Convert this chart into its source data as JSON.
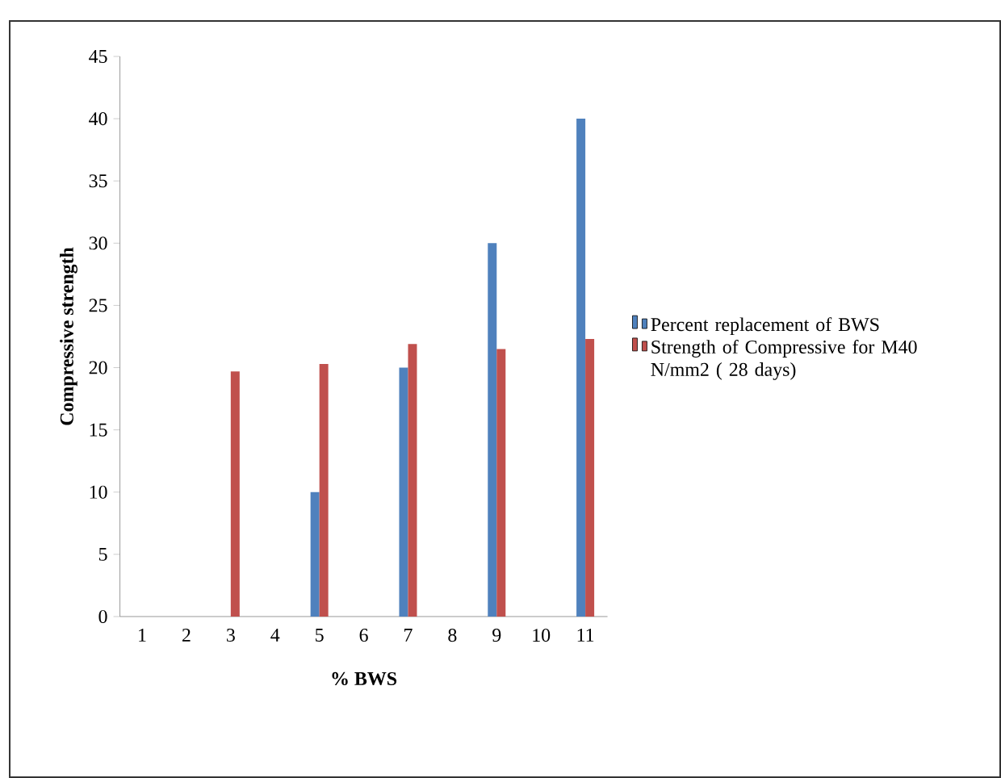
{
  "chart_data": {
    "type": "bar",
    "xlabel": "% BWS",
    "ylabel": "Compressive strength",
    "categories": [
      "1",
      "2",
      "3",
      "4",
      "5",
      "6",
      "7",
      "8",
      "9",
      "10",
      "11"
    ],
    "series": [
      {
        "name": "Percent  replacement of BWS",
        "color": "#4f81bd",
        "values": [
          null,
          null,
          null,
          null,
          10,
          null,
          20,
          null,
          30,
          null,
          40
        ]
      },
      {
        "name": "Strength of Compressive for M40 N/mm2 ( 28 days)",
        "color": "#c0504d",
        "values": [
          null,
          null,
          19.7,
          null,
          20.3,
          null,
          21.9,
          null,
          21.5,
          null,
          22.3
        ]
      }
    ],
    "ylim": [
      0,
      45
    ],
    "yticks": [
      0,
      5,
      10,
      15,
      20,
      25,
      30,
      35,
      40,
      45
    ],
    "legend": "right"
  }
}
